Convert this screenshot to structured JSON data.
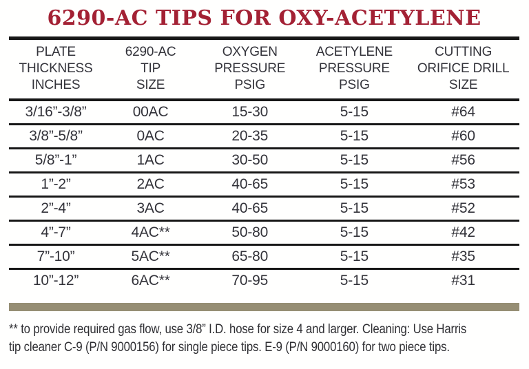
{
  "title": {
    "text": "6290-AC TIPS FOR OXY-ACETYLENE"
  },
  "colors": {
    "title_red": "#a32134",
    "rule_black": "#171717",
    "divider_tan": "#968e74",
    "body_text": "#33333a"
  },
  "table": {
    "headers": [
      {
        "lines": [
          "PLATE",
          "THICKNESS",
          "INCHES"
        ]
      },
      {
        "lines": [
          "6290-AC",
          "TIP",
          "SIZE"
        ]
      },
      {
        "lines": [
          "OXYGEN",
          "PRESSURE",
          "PSIG"
        ]
      },
      {
        "lines": [
          "ACETYLENE",
          "PRESSURE",
          "PSIG"
        ]
      },
      {
        "lines": [
          "CUTTING",
          "ORIFICE DRILL",
          "SIZE"
        ]
      }
    ],
    "rows": [
      {
        "cells": [
          "3/16”-3/8”",
          "00AC",
          "15-30",
          "5-15",
          "#64"
        ]
      },
      {
        "cells": [
          "3/8”-5/8”",
          "0AC",
          "20-35",
          "5-15",
          "#60"
        ]
      },
      {
        "cells": [
          "5/8”-1”",
          "1AC",
          "30-50",
          "5-15",
          "#56"
        ]
      },
      {
        "cells": [
          "1”-2”",
          "2AC",
          "40-65",
          "5-15",
          "#53"
        ]
      },
      {
        "cells": [
          "2”-4”",
          "3AC",
          "40-65",
          "5-15",
          "#52"
        ]
      },
      {
        "cells": [
          "4”-7”",
          "4AC**",
          "50-80",
          "5-15",
          "#42"
        ]
      },
      {
        "cells": [
          "7”-10”",
          "5AC**",
          "65-80",
          "5-15",
          "#35"
        ]
      },
      {
        "cells": [
          "10”-12”",
          "6AC**",
          "70-95",
          "5-15",
          "#31"
        ]
      }
    ]
  },
  "footnote": {
    "lines": [
      "** to provide required gas flow, use 3/8” I.D. hose for size 4 and larger. Cleaning: Use Harris",
      "tip cleaner C-9 (P/N 9000156) for single piece tips. E-9 (P/N 9000160) for two piece tips."
    ]
  }
}
